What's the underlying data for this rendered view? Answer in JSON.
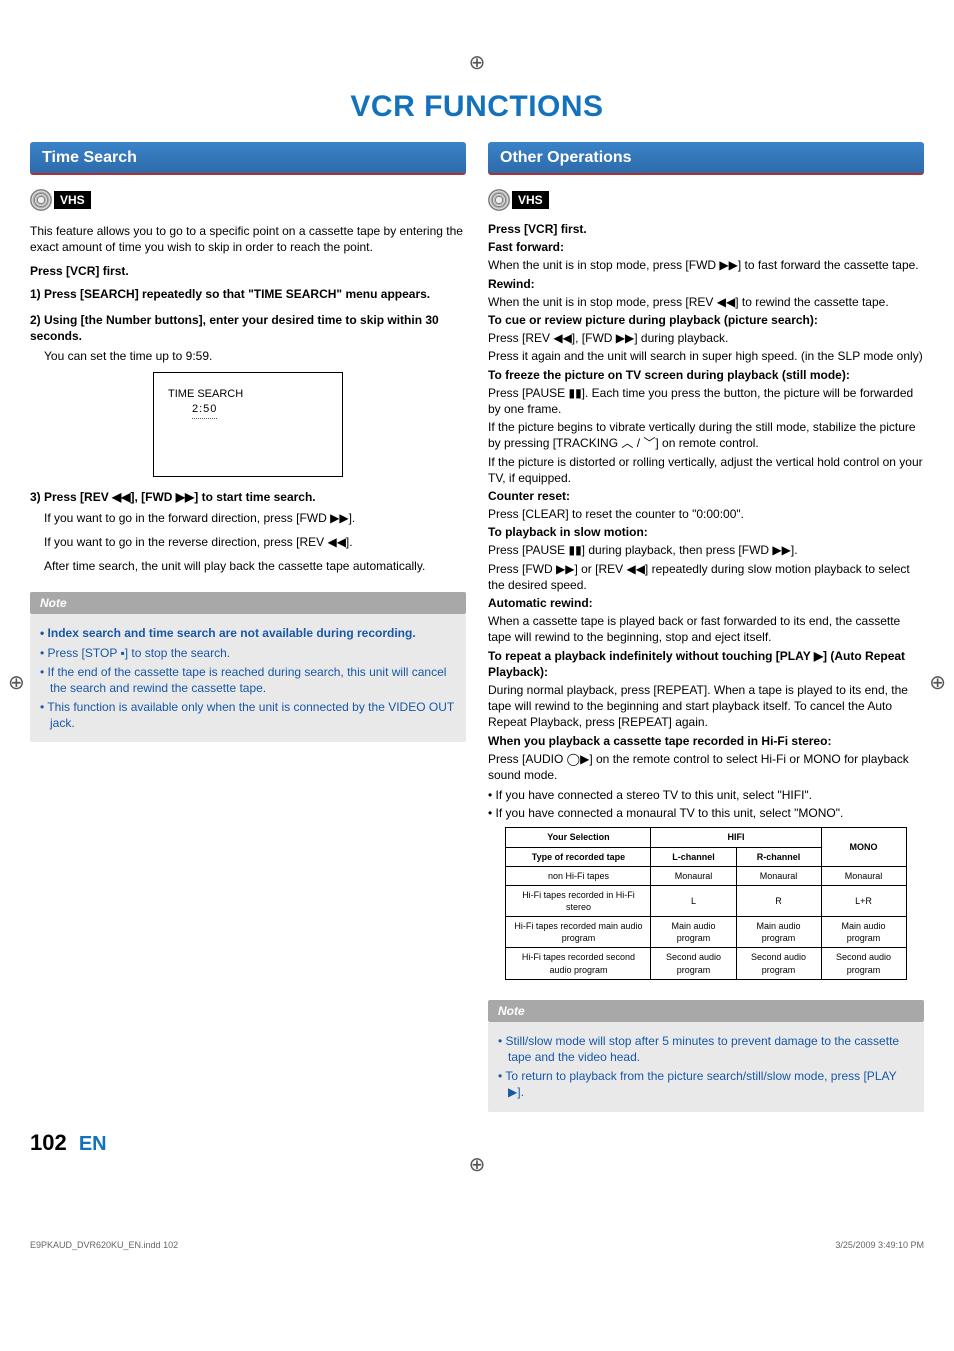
{
  "page_title": "VCR FUNCTIONS",
  "left": {
    "section": "Time Search",
    "badge": "VHS",
    "intro": "This feature allows you to go to a specific point on a cassette tape by entering the exact amount of time you wish to skip in order to reach the point.",
    "press_first": "Press [VCR] first.",
    "step1": "1) Press [SEARCH] repeatedly so that \"TIME SEARCH\" menu appears.",
    "step2": "2) Using [the Number buttons], enter your desired time to skip within 30 seconds.",
    "step2_sub": "You can set the time up to 9:59.",
    "ts_label": "TIME SEARCH",
    "ts_value": "2:50",
    "step3": "3) Press [REV ◀◀], [FWD ▶▶] to start time search.",
    "step3_a": "If you want to go in the forward direction, press [FWD ▶▶].",
    "step3_b": "If you want to go in the reverse direction, press [REV ◀◀].",
    "step3_c": "After time search, the unit will play back the cassette tape automatically.",
    "note_label": "Note",
    "note_items": [
      {
        "text": "Index search and time search are not available during recording.",
        "bold": true
      },
      {
        "text": "Press [STOP ▪] to stop the search.",
        "bold": false
      },
      {
        "text": "If the end of the cassette tape is reached during search, this unit will cancel the search and rewind the cassette tape.",
        "bold": false
      },
      {
        "text": "This function is available only when the unit is connected by the VIDEO OUT jack.",
        "bold": false
      }
    ]
  },
  "right": {
    "section": "Other Operations",
    "badge": "VHS",
    "press_first": "Press [VCR] first.",
    "ops": [
      {
        "head": "Fast forward:",
        "body": "When the unit is in stop mode, press [FWD ▶▶] to fast forward the cassette tape."
      },
      {
        "head": "Rewind:",
        "body": "When the unit is in stop mode, press [REV ◀◀] to rewind the cassette tape."
      },
      {
        "head": "To cue or review picture during playback (picture search):",
        "body": "Press [REV ◀◀], [FWD ▶▶] during playback.\nPress it again and the unit will search in super high speed. (in the SLP mode only)"
      },
      {
        "head": "To freeze the picture on TV screen during playback (still mode):",
        "body": "Press [PAUSE ▮▮]. Each time you press the button, the picture will be forwarded by one frame.\nIf the picture begins to vibrate vertically during the still mode, stabilize the picture by pressing [TRACKING ︿ / ﹀] on remote control.\nIf the picture is distorted or rolling vertically, adjust the vertical hold control on your TV, if equipped."
      },
      {
        "head": "Counter reset:",
        "body": "Press [CLEAR] to reset the counter to \"0:00:00\"."
      },
      {
        "head": "To playback in slow motion:",
        "body": "Press [PAUSE ▮▮] during playback, then press [FWD ▶▶].\nPress [FWD ▶▶] or [REV ◀◀] repeatedly during slow motion playback to select the desired speed."
      },
      {
        "head": "Automatic rewind:",
        "body": "When a cassette tape is played back or fast forwarded to its end, the cassette tape will rewind to the beginning, stop and eject itself."
      },
      {
        "head": "To repeat a playback indefinitely without touching [PLAY ▶] (Auto Repeat Playback):",
        "body": "During normal playback, press [REPEAT]. When a tape is played to its end, the tape will rewind to the beginning and start playback itself. To cancel the Auto Repeat Playback, press [REPEAT] again."
      },
      {
        "head": "When you playback a cassette tape recorded in Hi-Fi stereo:",
        "body": "Press [AUDIO ◯▶] on the remote control to select Hi-Fi or MONO for playback sound mode."
      }
    ],
    "post_bullets": [
      "If you have connected a stereo TV to this unit, select \"HIFI\".",
      "If you have connected a monaural TV to this unit, select \"MONO\"."
    ],
    "table": {
      "sel_header": "Your Selection",
      "hifi": "HIFI",
      "mono": "MONO",
      "type_header": "Type of recorded tape",
      "l": "L-channel",
      "r": "R-channel",
      "rows": [
        [
          "non Hi-Fi tapes",
          "Monaural",
          "Monaural",
          "Monaural"
        ],
        [
          "Hi-Fi tapes recorded in Hi-Fi stereo",
          "L",
          "R",
          "L+R"
        ],
        [
          "Hi-Fi tapes recorded main audio program",
          "Main audio program",
          "Main audio program",
          "Main audio program"
        ],
        [
          "Hi-Fi tapes recorded second audio program",
          "Second audio program",
          "Second audio program",
          "Second audio program"
        ]
      ]
    },
    "note_label": "Note",
    "note_items": [
      "Still/slow mode will stop after 5 minutes to prevent damage to the cassette tape and the video head.",
      "To return to playback from the picture search/still/slow mode, press [PLAY ▶]."
    ]
  },
  "page_number": "102",
  "page_lang": "EN",
  "footer_left": "E9PKAUD_DVR620KU_EN.indd   102",
  "footer_right": "3/25/2009   3:49:10 PM"
}
